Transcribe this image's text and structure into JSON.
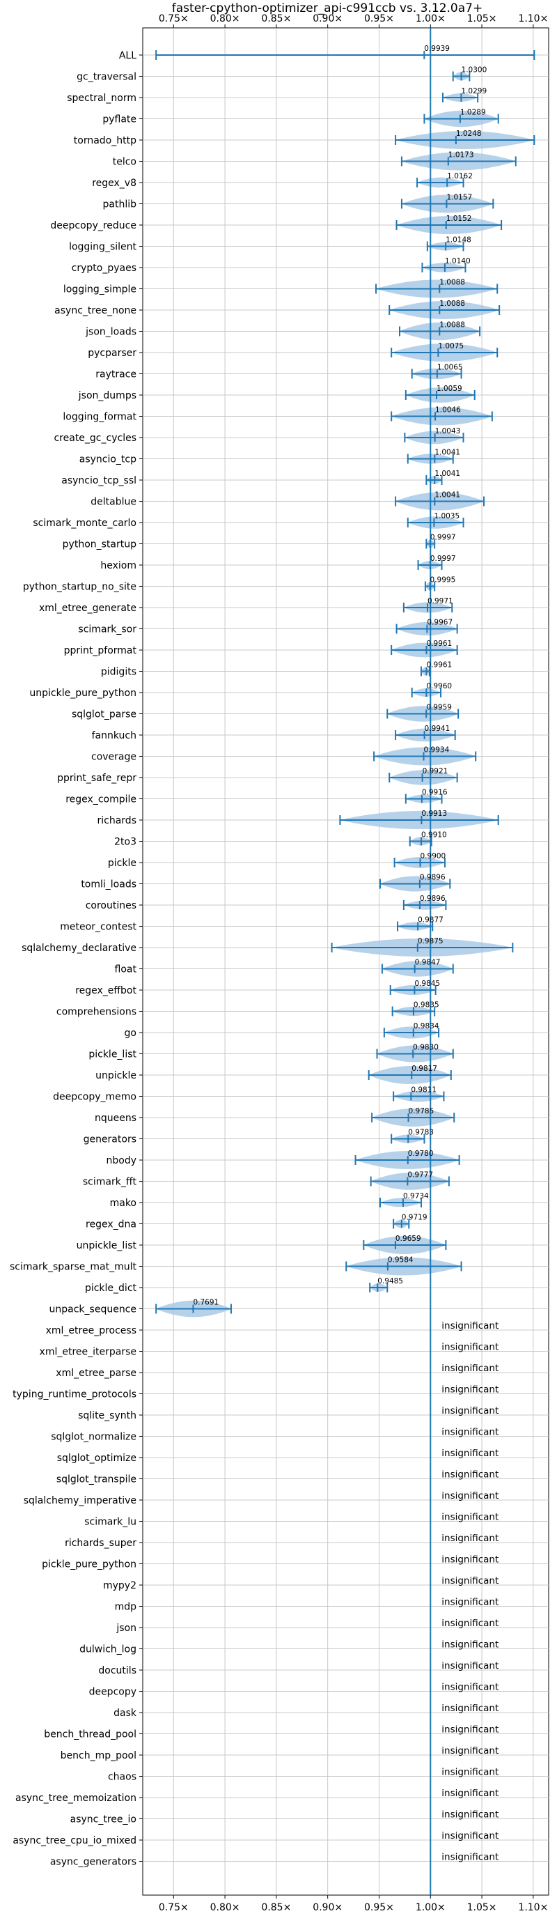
{
  "chart_data": {
    "type": "violin",
    "title": "faster-cpython-optimizer_api-c991ccb vs. 3.12.0a7+",
    "xlabel": "",
    "ylabel": "",
    "x_ticks": [
      "0.75×",
      "0.80×",
      "0.85×",
      "0.90×",
      "0.95×",
      "1.00×",
      "1.05×",
      "1.10×"
    ],
    "x_tick_values": [
      0.75,
      0.8,
      0.85,
      0.9,
      0.95,
      1.0,
      1.05,
      1.1
    ],
    "xlim": [
      0.72,
      1.115
    ],
    "reference_line": 1.0,
    "grid": true,
    "colors": {
      "line": "#1f77b4",
      "violin": "#a9c9e6"
    },
    "insignificant_label": "insignificant",
    "benchmarks": [
      {
        "name": "ALL",
        "value": 0.9939,
        "label": "0.9939",
        "min": 0.733,
        "max": 1.101
      },
      {
        "name": "gc_traversal",
        "value": 1.03,
        "label": "1.0300",
        "min": 1.022,
        "max": 1.038
      },
      {
        "name": "spectral_norm",
        "value": 1.0299,
        "label": "1.0299",
        "min": 1.012,
        "max": 1.046
      },
      {
        "name": "pyflate",
        "value": 1.0289,
        "label": "1.0289",
        "min": 0.994,
        "max": 1.066
      },
      {
        "name": "tornado_http",
        "value": 1.0248,
        "label": "1.0248",
        "min": 0.966,
        "max": 1.101
      },
      {
        "name": "telco",
        "value": 1.0173,
        "label": "1.0173",
        "min": 0.972,
        "max": 1.083
      },
      {
        "name": "regex_v8",
        "value": 1.0162,
        "label": "1.0162",
        "min": 0.987,
        "max": 1.032
      },
      {
        "name": "pathlib",
        "value": 1.0157,
        "label": "1.0157",
        "min": 0.972,
        "max": 1.061
      },
      {
        "name": "deepcopy_reduce",
        "value": 1.0152,
        "label": "1.0152",
        "min": 0.967,
        "max": 1.069
      },
      {
        "name": "logging_silent",
        "value": 1.0148,
        "label": "1.0148",
        "min": 0.997,
        "max": 1.032
      },
      {
        "name": "crypto_pyaes",
        "value": 1.014,
        "label": "1.0140",
        "min": 0.992,
        "max": 1.034
      },
      {
        "name": "logging_simple",
        "value": 1.0088,
        "label": "1.0088",
        "min": 0.947,
        "max": 1.065
      },
      {
        "name": "async_tree_none",
        "value": 1.0088,
        "label": "1.0088",
        "min": 0.96,
        "max": 1.067
      },
      {
        "name": "json_loads",
        "value": 1.0088,
        "label": "1.0088",
        "min": 0.97,
        "max": 1.048
      },
      {
        "name": "pycparser",
        "value": 1.0075,
        "label": "1.0075",
        "min": 0.962,
        "max": 1.065
      },
      {
        "name": "raytrace",
        "value": 1.0065,
        "label": "1.0065",
        "min": 0.982,
        "max": 1.03
      },
      {
        "name": "json_dumps",
        "value": 1.0059,
        "label": "1.0059",
        "min": 0.976,
        "max": 1.043
      },
      {
        "name": "logging_format",
        "value": 1.0046,
        "label": "1.0046",
        "min": 0.962,
        "max": 1.06
      },
      {
        "name": "create_gc_cycles",
        "value": 1.0043,
        "label": "1.0043",
        "min": 0.975,
        "max": 1.032
      },
      {
        "name": "asyncio_tcp",
        "value": 1.0041,
        "label": "1.0041",
        "min": 0.978,
        "max": 1.022
      },
      {
        "name": "asyncio_tcp_ssl",
        "value": 1.0041,
        "label": "1.0041",
        "min": 0.996,
        "max": 1.011
      },
      {
        "name": "deltablue",
        "value": 1.0041,
        "label": "1.0041",
        "min": 0.966,
        "max": 1.052
      },
      {
        "name": "scimark_monte_carlo",
        "value": 1.0035,
        "label": "1.0035",
        "min": 0.978,
        "max": 1.032
      },
      {
        "name": "python_startup",
        "value": 0.9997,
        "label": "0.9997",
        "min": 0.996,
        "max": 1.004
      },
      {
        "name": "hexiom",
        "value": 0.9997,
        "label": "0.9997",
        "min": 0.988,
        "max": 1.011
      },
      {
        "name": "python_startup_no_site",
        "value": 0.9995,
        "label": "0.9995",
        "min": 0.995,
        "max": 1.004
      },
      {
        "name": "xml_etree_generate",
        "value": 0.9971,
        "label": "0.9971",
        "min": 0.974,
        "max": 1.021
      },
      {
        "name": "scimark_sor",
        "value": 0.9967,
        "label": "0.9967",
        "min": 0.967,
        "max": 1.026
      },
      {
        "name": "pprint_pformat",
        "value": 0.9961,
        "label": "0.9961",
        "min": 0.962,
        "max": 1.026
      },
      {
        "name": "pidigits",
        "value": 0.9961,
        "label": "0.9961",
        "min": 0.991,
        "max": 0.999
      },
      {
        "name": "unpickle_pure_python",
        "value": 0.996,
        "label": "0.9960",
        "min": 0.982,
        "max": 1.01
      },
      {
        "name": "sqlglot_parse",
        "value": 0.9959,
        "label": "0.9959",
        "min": 0.958,
        "max": 1.027
      },
      {
        "name": "fannkuch",
        "value": 0.9941,
        "label": "0.9941",
        "min": 0.966,
        "max": 1.024
      },
      {
        "name": "coverage",
        "value": 0.9934,
        "label": "0.9934",
        "min": 0.945,
        "max": 1.044
      },
      {
        "name": "pprint_safe_repr",
        "value": 0.9921,
        "label": "0.9921",
        "min": 0.96,
        "max": 1.026
      },
      {
        "name": "regex_compile",
        "value": 0.9916,
        "label": "0.9916",
        "min": 0.976,
        "max": 1.011
      },
      {
        "name": "richards",
        "value": 0.9913,
        "label": "0.9913",
        "min": 0.912,
        "max": 1.066
      },
      {
        "name": "2to3",
        "value": 0.991,
        "label": "0.9910",
        "min": 0.98,
        "max": 1.001
      },
      {
        "name": "pickle",
        "value": 0.99,
        "label": "0.9900",
        "min": 0.965,
        "max": 1.014
      },
      {
        "name": "tomli_loads",
        "value": 0.9896,
        "label": "0.9896",
        "min": 0.951,
        "max": 1.019
      },
      {
        "name": "coroutines",
        "value": 0.9896,
        "label": "0.9896",
        "min": 0.974,
        "max": 1.015
      },
      {
        "name": "meteor_contest",
        "value": 0.9877,
        "label": "0.9877",
        "min": 0.968,
        "max": 1.002
      },
      {
        "name": "sqlalchemy_declarative",
        "value": 0.9875,
        "label": "0.9875",
        "min": 0.904,
        "max": 1.08
      },
      {
        "name": "float",
        "value": 0.9847,
        "label": "0.9847",
        "min": 0.953,
        "max": 1.022
      },
      {
        "name": "regex_effbot",
        "value": 0.9845,
        "label": "0.9845",
        "min": 0.961,
        "max": 1.005
      },
      {
        "name": "comprehensions",
        "value": 0.9835,
        "label": "0.9835",
        "min": 0.963,
        "max": 1.004
      },
      {
        "name": "go",
        "value": 0.9834,
        "label": "0.9834",
        "min": 0.955,
        "max": 1.008
      },
      {
        "name": "pickle_list",
        "value": 0.983,
        "label": "0.9830",
        "min": 0.948,
        "max": 1.022
      },
      {
        "name": "unpickle",
        "value": 0.9817,
        "label": "0.9817",
        "min": 0.94,
        "max": 1.02
      },
      {
        "name": "deepcopy_memo",
        "value": 0.9811,
        "label": "0.9811",
        "min": 0.964,
        "max": 1.013
      },
      {
        "name": "nqueens",
        "value": 0.9785,
        "label": "0.9785",
        "min": 0.943,
        "max": 1.023
      },
      {
        "name": "generators",
        "value": 0.9783,
        "label": "0.9783",
        "min": 0.962,
        "max": 0.994
      },
      {
        "name": "nbody",
        "value": 0.978,
        "label": "0.9780",
        "min": 0.927,
        "max": 1.028
      },
      {
        "name": "scimark_fft",
        "value": 0.9777,
        "label": "0.9777",
        "min": 0.942,
        "max": 1.018
      },
      {
        "name": "mako",
        "value": 0.9734,
        "label": "0.9734",
        "min": 0.951,
        "max": 0.991
      },
      {
        "name": "regex_dna",
        "value": 0.9719,
        "label": "0.9719",
        "min": 0.964,
        "max": 0.979
      },
      {
        "name": "unpickle_list",
        "value": 0.9659,
        "label": "0.9659",
        "min": 0.935,
        "max": 1.015
      },
      {
        "name": "scimark_sparse_mat_mult",
        "value": 0.9584,
        "label": "0.9584",
        "min": 0.918,
        "max": 1.03
      },
      {
        "name": "pickle_dict",
        "value": 0.9485,
        "label": "0.9485",
        "min": 0.941,
        "max": 0.958
      },
      {
        "name": "unpack_sequence",
        "value": 0.7691,
        "label": "0.7691",
        "min": 0.733,
        "max": 0.806
      },
      {
        "name": "xml_etree_process",
        "insignificant": true
      },
      {
        "name": "xml_etree_iterparse",
        "insignificant": true
      },
      {
        "name": "xml_etree_parse",
        "insignificant": true
      },
      {
        "name": "typing_runtime_protocols",
        "insignificant": true
      },
      {
        "name": "sqlite_synth",
        "insignificant": true
      },
      {
        "name": "sqlglot_normalize",
        "insignificant": true
      },
      {
        "name": "sqlglot_optimize",
        "insignificant": true
      },
      {
        "name": "sqlglot_transpile",
        "insignificant": true
      },
      {
        "name": "sqlalchemy_imperative",
        "insignificant": true
      },
      {
        "name": "scimark_lu",
        "insignificant": true
      },
      {
        "name": "richards_super",
        "insignificant": true
      },
      {
        "name": "pickle_pure_python",
        "insignificant": true
      },
      {
        "name": "mypy2",
        "insignificant": true
      },
      {
        "name": "mdp",
        "insignificant": true
      },
      {
        "name": "json",
        "insignificant": true
      },
      {
        "name": "dulwich_log",
        "insignificant": true
      },
      {
        "name": "docutils",
        "insignificant": true
      },
      {
        "name": "deepcopy",
        "insignificant": true
      },
      {
        "name": "dask",
        "insignificant": true
      },
      {
        "name": "bench_thread_pool",
        "insignificant": true
      },
      {
        "name": "bench_mp_pool",
        "insignificant": true
      },
      {
        "name": "chaos",
        "insignificant": true
      },
      {
        "name": "async_tree_memoization",
        "insignificant": true
      },
      {
        "name": "async_tree_io",
        "insignificant": true
      },
      {
        "name": "async_tree_cpu_io_mixed",
        "insignificant": true
      },
      {
        "name": "async_generators",
        "insignificant": true
      }
    ]
  }
}
